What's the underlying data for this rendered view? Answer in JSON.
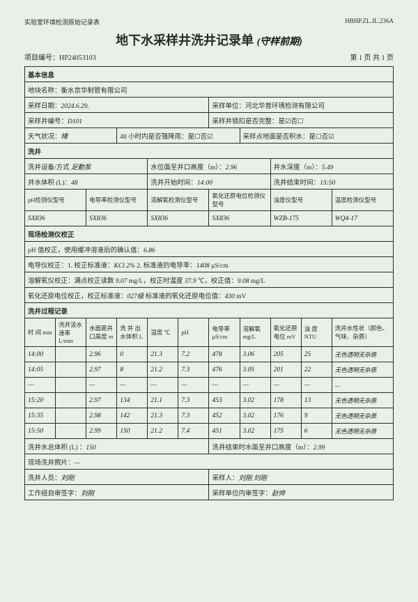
{
  "header": {
    "left": "实验室环境检测原始记录表",
    "right": "HBHP.ZL.JL.236A",
    "title": "地下水采样井洗井记录单",
    "suffix": "(守样前期)",
    "project": "项目编号：HP24053103",
    "page": "第 1 页 共 1 页"
  },
  "s1": "基本信息",
  "blk": "地块名称：衡水京华制管有限公司",
  "d1l": "采样日期：",
  "d1v": "2024.6.29.",
  "d1r": "采样单位：河北华普环境检测有限公司",
  "d2l": "采样井编号：",
  "d2v": "D101",
  "d2r": "采样井锁扣是否完整：是☑否☐",
  "d3a": "天气状况：",
  "d3av": "晴",
  "d3b": "48 小时内是否强降雨：是☐否☑",
  "d3c": "采样点地面是否积水：是☐否☑",
  "s2": "洗井",
  "e1": "洗井设备/方式",
  "e1v": "足勤泵",
  "e2": "水位面至井口高度（m）：",
  "e2v": "2.96",
  "e3": "井水深度（m）：",
  "e3v": "5.49",
  "e4": "井水体积 (L)：",
  "e4v": "48",
  "e5": "洗井开始时间：",
  "e5v": "14:00",
  "e6": "洗井结束时间：",
  "e6v": "15:50",
  "ih": [
    "pH检测仪型号",
    "电导率检测仪型号",
    "溶解氧检测仪型号",
    "氧化还原电位检测仪型号",
    "浊度仪型号",
    "温度检测仪型号"
  ],
  "iv": [
    "SX836",
    "SX836",
    "SX836",
    "SX836",
    "WZB-175",
    "WQ4-17"
  ],
  "s3": "现场检测仪校正",
  "c1": "pH 值校正，使用缓冲溶液后的确认值：",
  "c1v": "6.86",
  "c2a": "电导仪校正：1. 校正标准液：",
  "c2av": "KCl 2%",
  "c2b": "  2. 标准液的电导率：",
  "c2bv": "1408",
  "c2u": " μS/cm",
  "c3a": "溶解氧仪校正：满点校正读数 ",
  "c3av": "9.07",
  "c3m": " mg/L，校正时温度 ",
  "c3bv": "37.9",
  "c3c": " ℃，校正值：",
  "c3cv": "9.08",
  "c3u": " mg/L",
  "c4a": "氧化还原电位校正，校正标准液：",
  "c4av": "027级",
  "c4b": " 标准液的氧化还原电位值：",
  "c4bv": "430",
  "c4u": " mV",
  "s4": "洗井过程记录",
  "th": [
    "时 间 min",
    "洗井汲水速率 L/min",
    "水面距井口高度 m",
    "洗 井 出水体积 L",
    "温度 ℃",
    "pH",
    "电导率 μS/cm",
    "溶解氧 mg/L",
    "氧化还原电位 mV",
    "浊 度 NTU",
    "洗井水性状（颜色、气味、杂质）"
  ],
  "r1": [
    "14:00",
    "",
    "2.96",
    "0",
    "21.3",
    "7.2",
    "478",
    "3.06",
    "205",
    "25",
    "无色透明无杂质"
  ],
  "r2": [
    "14:05",
    "",
    "2.97",
    "8",
    "21.2",
    "7.3",
    "476",
    "3.05",
    "201",
    "22",
    "无色透明无杂质"
  ],
  "r3": [
    "—",
    "",
    "—",
    "—",
    "—",
    "—",
    "—",
    "—",
    "—",
    "—",
    "—"
  ],
  "r4": [
    "15:20",
    "",
    "2.97",
    "134",
    "21.1",
    "7.3",
    "453",
    "3.02",
    "178",
    "13",
    "无色透明无杂质"
  ],
  "r5": [
    "15:35",
    "",
    "2.98",
    "142",
    "21.3",
    "7.3",
    "452",
    "3.02",
    "176",
    "9",
    "无色透明无杂质"
  ],
  "r6": [
    "15:50",
    "",
    "2.99",
    "150",
    "21.2",
    "7.4",
    "451",
    "3.02",
    "175",
    "6",
    "无色透明无杂质"
  ],
  "f1": "洗井水总体积 (L) ：",
  "f1v": "150",
  "f2": "洗井结束时水面至井口高度（m）：",
  "f2v": "2.99",
  "f3": "现场洗井照片：",
  "f3v": "—",
  "f4": "洗井人员：",
  "f4v": "刘刚",
  "f5": "采样人：",
  "f5v": "刘刚  刘刚",
  "f6": "工作组自审签字：",
  "f6v": "刘刚",
  "f7": "采样单位内审签字：",
  "f7v": "赵帅"
}
